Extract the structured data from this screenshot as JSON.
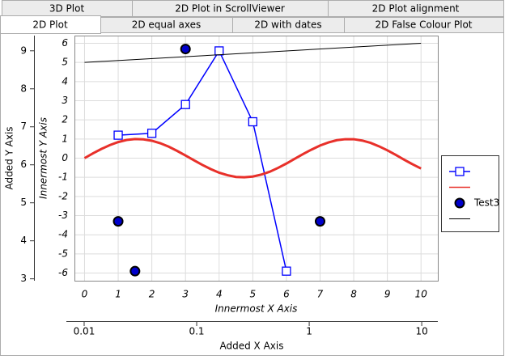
{
  "tabs": {
    "row1": [
      "3D Plot",
      "2D Plot in ScrollViewer",
      "2D Plot alignment"
    ],
    "row2": [
      "2D Plot",
      "2D equal axes",
      "2D with dates",
      "2D False Colour Plot"
    ]
  },
  "chart_data": {
    "type": "line",
    "x_label": "Innermost X Axis",
    "y_label": "Innermost Y Axis",
    "xlim": [
      -0.3,
      10.5
    ],
    "xticks": [
      0,
      1,
      2,
      3,
      4,
      5,
      6,
      7,
      8,
      9,
      10
    ],
    "ylim": [
      -6.4,
      6.4
    ],
    "yticks": [
      -6,
      -5,
      -4,
      -3,
      -2,
      -1,
      0,
      1,
      2,
      3,
      4,
      5,
      6
    ],
    "grid": true,
    "added_x_axis": {
      "label": "Added X Axis",
      "scale": "log",
      "xlim": [
        0.0082,
        13.9
      ],
      "xticks": [
        0.01,
        0.1,
        1,
        10
      ]
    },
    "added_y_axis": {
      "label": "Added Y Axis",
      "ylim": [
        2.95,
        9.4
      ],
      "yticks": [
        3,
        4,
        5,
        6,
        7,
        8,
        9
      ]
    },
    "series": [
      {
        "color": "#0000ff",
        "marker": "square",
        "line": true,
        "line_width": 1.5,
        "x": [
          1,
          2,
          3,
          4,
          5,
          6
        ],
        "values": [
          1.2,
          1.3,
          2.8,
          5.6,
          1.9,
          -5.9
        ]
      },
      {
        "color": "#e8302a",
        "line": true,
        "line_width": 3,
        "x": [
          0,
          0.25,
          0.5,
          0.75,
          1,
          1.25,
          1.5,
          1.75,
          2,
          2.25,
          2.5,
          2.75,
          3,
          3.25,
          3.5,
          3.75,
          4,
          4.25,
          4.5,
          4.75,
          5,
          5.25,
          5.5,
          5.75,
          6,
          6.25,
          6.5,
          6.75,
          7,
          7.25,
          7.5,
          7.75,
          8,
          8.25,
          8.5,
          8.75,
          9,
          9.25,
          9.5,
          9.75,
          10
        ],
        "values": [
          0,
          0.25,
          0.48,
          0.68,
          0.84,
          0.95,
          1.0,
          0.98,
          0.91,
          0.78,
          0.6,
          0.38,
          0.14,
          -0.11,
          -0.35,
          -0.57,
          -0.76,
          -0.89,
          -0.98,
          -1.0,
          -0.96,
          -0.86,
          -0.71,
          -0.51,
          -0.28,
          -0.03,
          0.22,
          0.45,
          0.66,
          0.82,
          0.94,
          0.99,
          0.99,
          0.92,
          0.8,
          0.62,
          0.41,
          0.17,
          -0.08,
          -0.32,
          -0.54
        ]
      },
      {
        "name": "Test3",
        "color": "#000000",
        "fill": "#0000cc",
        "marker": "circle",
        "line": false,
        "x": [
          1,
          1.5,
          3,
          7
        ],
        "values": [
          -3.3,
          -5.9,
          5.7,
          -3.3
        ]
      },
      {
        "color": "#000000",
        "line": true,
        "line_width": 1,
        "x": [
          0,
          10
        ],
        "values": [
          5,
          6
        ]
      }
    ]
  }
}
